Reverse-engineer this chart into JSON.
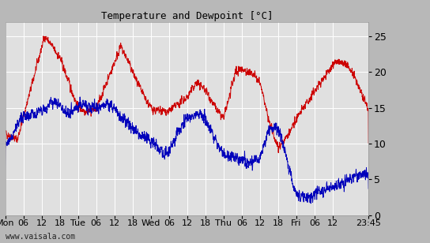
{
  "title": "Temperature and Dewpoint [°C]",
  "yticks": [
    0,
    5,
    10,
    15,
    20,
    25
  ],
  "ylim": [
    0,
    27
  ],
  "bg_color": "#b8b8b8",
  "plot_bg_color": "#e0e0e0",
  "grid_color": "#ffffff",
  "temp_color": "#cc0000",
  "dew_color": "#0000bb",
  "watermark": "www.vaisala.com",
  "xlabel_ticks": [
    "Mon",
    "06",
    "12",
    "18",
    "Tue",
    "06",
    "12",
    "18",
    "Wed",
    "06",
    "12",
    "18",
    "Thu",
    "06",
    "12",
    "18",
    "Fri",
    "06",
    "12",
    "23:45"
  ],
  "xtick_positions": [
    0,
    6,
    12,
    18,
    24,
    30,
    36,
    42,
    48,
    54,
    60,
    66,
    72,
    78,
    84,
    90,
    96,
    102,
    108,
    119.75
  ],
  "total_hours": 119.75,
  "noise_temp": 0.5,
  "noise_dew": 0.7
}
